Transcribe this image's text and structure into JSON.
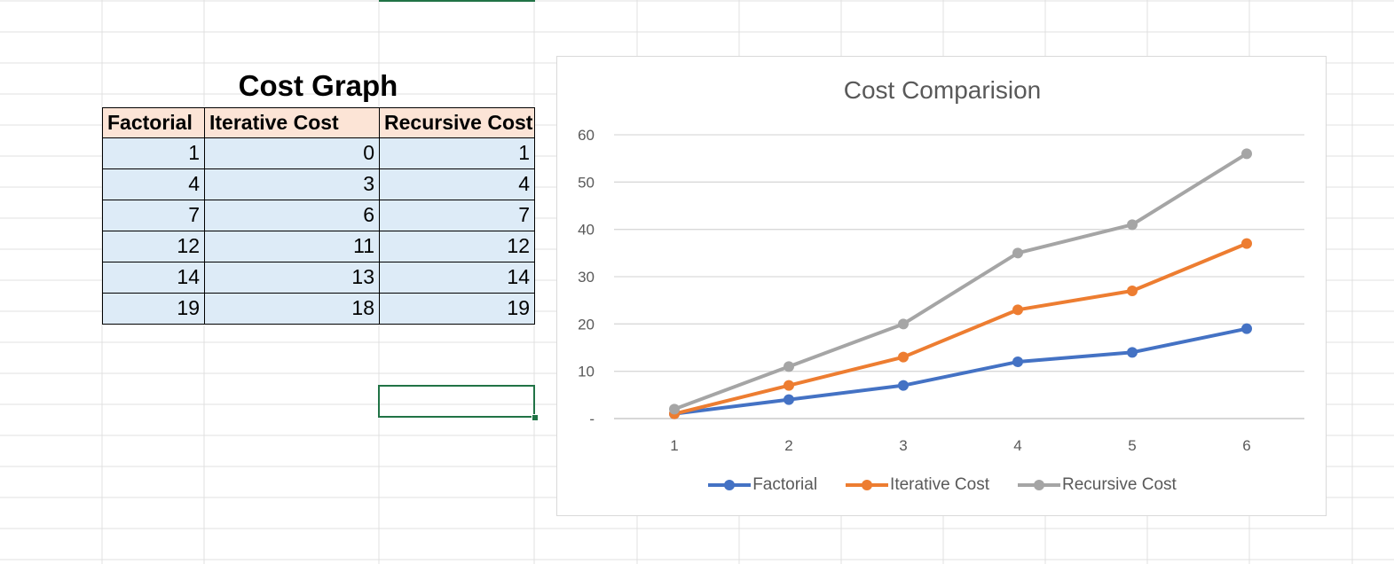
{
  "table": {
    "title": "Cost Graph",
    "headers": [
      "Factorial",
      "Iterative Cost",
      "Recursive Cost"
    ],
    "rows": [
      [
        "1",
        "0",
        "1"
      ],
      [
        "4",
        "3",
        "4"
      ],
      [
        "7",
        "6",
        "7"
      ],
      [
        "12",
        "11",
        "12"
      ],
      [
        "14",
        "13",
        "14"
      ],
      [
        "19",
        "18",
        "19"
      ]
    ]
  },
  "colors": {
    "header_fill": "#fce4d6",
    "value_fill": "#ddebf7",
    "selection": "#217346",
    "factorial": "#4472c4",
    "iterative": "#ed7d31",
    "recursive": "#a5a5a5"
  },
  "chart_data": {
    "type": "line",
    "title": "Cost Comparision",
    "x": [
      1,
      2,
      3,
      4,
      5,
      6
    ],
    "xticks": [
      "1",
      "2",
      "3",
      "4",
      "5",
      "6"
    ],
    "ylim": [
      0,
      60
    ],
    "yticks": [
      "-",
      "10",
      "20",
      "30",
      "40",
      "50",
      "60"
    ],
    "grid": true,
    "legend_position": "bottom",
    "series": [
      {
        "name": "Factorial",
        "values": [
          1,
          4,
          7,
          12,
          14,
          19
        ],
        "color": "#4472c4"
      },
      {
        "name": "Iterative Cost",
        "values": [
          1,
          7,
          13,
          23,
          27,
          37
        ],
        "color": "#ed7d31"
      },
      {
        "name": "Recursive Cost",
        "values": [
          2,
          11,
          20,
          35,
          41,
          56
        ],
        "color": "#a5a5a5"
      }
    ]
  }
}
